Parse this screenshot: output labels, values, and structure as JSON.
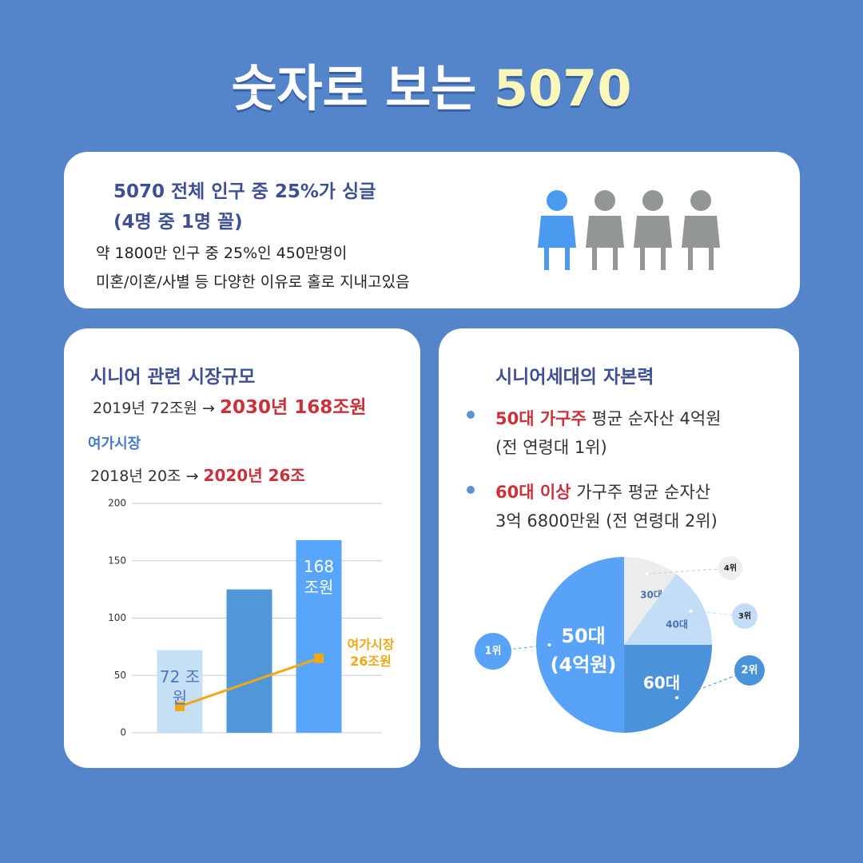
{
  "header": {
    "title": "숫자로 보는",
    "title_highlight": "5070"
  },
  "card1": {
    "title_line1": "5070 전체 인구 중 25%가 싱글",
    "title_line2": "(4명 중 1명 꼴)",
    "body_line1": "약 1800만 인구 중 25%인 450만명이",
    "body_line2": "미혼/이혼/사별 등 다양한 이유로 홀로 지내고있음"
  },
  "card2": {
    "title": "시니어 관련 시장규모",
    "line1_from": "2019년 72조원 →",
    "line1_to": "2030년 168조원",
    "subtitle": "여가시장",
    "line2_from": "2018년 20조 →",
    "line2_to": "2020년 26조"
  },
  "card3": {
    "title": "시니어세대의 자본력",
    "bullet1_highlight": "50대 가구주",
    "bullet1_text": "평균 순자산 4억원",
    "bullet1_line2": "(전 연령대 1위)",
    "bullet2_highlight": "60대 이상",
    "bullet2_text": "가구주 평균 순자산",
    "bullet2_line2": "3억 6800만원 (전 연령대 2위)"
  },
  "chart_data": [
    {
      "type": "bar",
      "categories": [
        null,
        null,
        null
      ],
      "values": [
        72,
        125,
        168
      ],
      "value_labels": [
        "72 조원",
        null,
        "168 조원"
      ],
      "colors": [
        "#c5dff5",
        "#4f97d8",
        "#58a6fb"
      ],
      "ylim": [
        0,
        200
      ],
      "yticks": [
        0,
        50,
        100,
        150,
        200
      ],
      "grid": true,
      "line": {
        "color": "#f0a818",
        "x": [
          0,
          2
        ],
        "values": [
          23,
          65
        ]
      },
      "annotation": "여가시장 26조원"
    },
    {
      "type": "pie",
      "categories": [
        "30대",
        "40대",
        "60대",
        "50대"
      ],
      "values": [
        10,
        15,
        25,
        50
      ],
      "colors": [
        "#ececec",
        "#c3ddf6",
        "#4a92da",
        "#58a3f8"
      ],
      "ranks": [
        "4위",
        "3위",
        "2위",
        "1위"
      ],
      "note": "(4억원)"
    }
  ]
}
